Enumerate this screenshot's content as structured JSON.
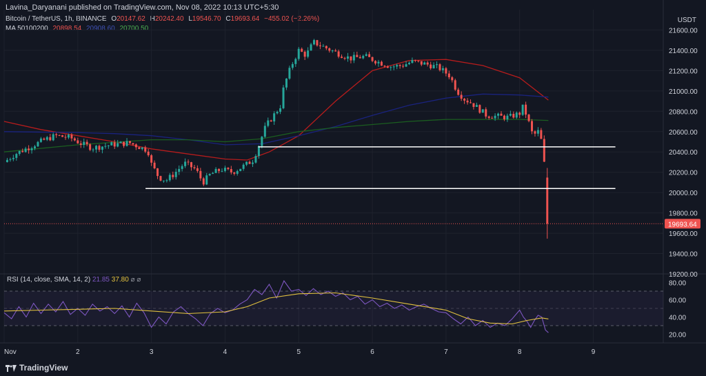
{
  "header": {
    "attribution": "Lavina_Daryanani published on TradingView.com, Nov 08, 2022 10:13 UTC+5:30"
  },
  "legend": {
    "symbol": "Bitcoin / TetherUS, 1h, BINANCE",
    "o_label": "O",
    "o_value": "20147.62",
    "h_label": "H",
    "h_value": "20242.40",
    "l_label": "L",
    "l_value": "19546.70",
    "c_label": "C",
    "c_value": "19693.64",
    "change": "−455.02 (−2.26%)",
    "ma_label": "MA 50100200",
    "ma50_value": "20898.54",
    "ma100_value": "20908.60",
    "ma200_value": "20700.50",
    "colors": {
      "up": "#26a69a",
      "down": "#ef5350",
      "ma50": "#b71c1c",
      "ma100": "#1a237e",
      "ma200": "#1b5e20"
    }
  },
  "rsi_legend": {
    "label": "RSI (14, close, SMA, 14, 2)",
    "rsi_value": "21.85",
    "sma_value": "37.80",
    "flags": "⌀ ⌀",
    "colors": {
      "rsi": "#7e57c2",
      "sma": "#e5c43f"
    }
  },
  "price_axis": {
    "unit": "USDT",
    "current_price_label": "19693.64"
  },
  "footer": {
    "brand": "TradingView"
  },
  "chart_data": [
    {
      "type": "candlestick",
      "title": "Bitcoin / TetherUS, 1h, BINANCE",
      "ylabel": "USDT",
      "ylim": [
        19200,
        21800
      ],
      "yticks": [
        19200,
        19400,
        19600,
        19800,
        20000,
        20200,
        20400,
        20600,
        20800,
        21000,
        21200,
        21400,
        21600
      ],
      "ytick_labels": [
        "19200.00",
        "19400.00",
        "19600.00",
        "19800.00",
        "20000.00",
        "20200.00",
        "20400.00",
        "20600.00",
        "20800.00",
        "21000.00",
        "21200.00",
        "21400.00",
        "21600.00"
      ],
      "xtick_labels": [
        "Nov",
        "2",
        "3",
        "4",
        "5",
        "6",
        "7",
        "8",
        "9"
      ],
      "xtick_days": [
        1,
        2,
        3,
        4,
        5,
        6,
        7,
        8,
        9
      ],
      "x_range_days": [
        1.0,
        9.95
      ],
      "price_path": [
        [
          1.0,
          20300
        ],
        [
          1.15,
          20380
        ],
        [
          1.35,
          20450
        ],
        [
          1.55,
          20520
        ],
        [
          1.7,
          20560
        ],
        [
          1.9,
          20540
        ],
        [
          2.05,
          20480
        ],
        [
          2.2,
          20440
        ],
        [
          2.45,
          20470
        ],
        [
          2.7,
          20490
        ],
        [
          2.9,
          20430
        ],
        [
          2.95,
          20420
        ],
        [
          3.0,
          20280
        ],
        [
          3.1,
          20150
        ],
        [
          3.2,
          20120
        ],
        [
          3.3,
          20180
        ],
        [
          3.45,
          20290
        ],
        [
          3.6,
          20230
        ],
        [
          3.7,
          20100
        ],
        [
          3.8,
          20180
        ],
        [
          3.95,
          20230
        ],
        [
          4.1,
          20200
        ],
        [
          4.25,
          20260
        ],
        [
          4.38,
          20320
        ],
        [
          4.45,
          20450
        ],
        [
          4.55,
          20650
        ],
        [
          4.65,
          20750
        ],
        [
          4.75,
          20850
        ],
        [
          4.8,
          21050
        ],
        [
          4.9,
          21250
        ],
        [
          5.0,
          21400
        ],
        [
          5.1,
          21350
        ],
        [
          5.2,
          21480
        ],
        [
          5.35,
          21430
        ],
        [
          5.5,
          21380
        ],
        [
          5.7,
          21320
        ],
        [
          5.9,
          21340
        ],
        [
          6.1,
          21280
        ],
        [
          6.25,
          21240
        ],
        [
          6.4,
          21250
        ],
        [
          6.55,
          21290
        ],
        [
          6.75,
          21260
        ],
        [
          6.9,
          21230
        ],
        [
          7.05,
          21150
        ],
        [
          7.15,
          21000
        ],
        [
          7.25,
          20920
        ],
        [
          7.35,
          20880
        ],
        [
          7.45,
          20820
        ],
        [
          7.55,
          20760
        ],
        [
          7.7,
          20750
        ],
        [
          7.85,
          20740
        ],
        [
          8.0,
          20780
        ],
        [
          8.05,
          20850
        ],
        [
          8.12,
          20700
        ],
        [
          8.18,
          20560
        ],
        [
          8.25,
          20600
        ],
        [
          8.3,
          20500
        ],
        [
          8.35,
          20180
        ],
        [
          8.39,
          19693.64
        ]
      ],
      "last_candle": {
        "open": 20147.62,
        "high": 20242.4,
        "low": 19546.7,
        "close": 19693.64
      },
      "moving_averages": [
        {
          "name": "MA 50",
          "color": "#b71c1c",
          "points": [
            [
              1.0,
              20700
            ],
            [
              1.5,
              20620
            ],
            [
              2.0,
              20560
            ],
            [
              2.5,
              20500
            ],
            [
              3.0,
              20430
            ],
            [
              3.5,
              20380
            ],
            [
              4.0,
              20330
            ],
            [
              4.3,
              20320
            ],
            [
              4.6,
              20400
            ],
            [
              5.0,
              20560
            ],
            [
              5.5,
              20900
            ],
            [
              6.0,
              21200
            ],
            [
              6.5,
              21300
            ],
            [
              7.0,
              21310
            ],
            [
              7.5,
              21250
            ],
            [
              8.0,
              21130
            ],
            [
              8.39,
              20910
            ]
          ]
        },
        {
          "name": "MA 100",
          "color": "#1a237e",
          "points": [
            [
              1.0,
              20600
            ],
            [
              2.0,
              20590
            ],
            [
              2.5,
              20580
            ],
            [
              3.0,
              20560
            ],
            [
              3.5,
              20520
            ],
            [
              4.0,
              20470
            ],
            [
              4.5,
              20480
            ],
            [
              5.0,
              20560
            ],
            [
              5.5,
              20650
            ],
            [
              6.0,
              20760
            ],
            [
              6.5,
              20860
            ],
            [
              7.0,
              20930
            ],
            [
              7.5,
              20970
            ],
            [
              8.0,
              20960
            ],
            [
              8.39,
              20940
            ]
          ]
        },
        {
          "name": "MA 200",
          "color": "#1b5e20",
          "points": [
            [
              1.0,
              20400
            ],
            [
              2.0,
              20470
            ],
            [
              3.0,
              20520
            ],
            [
              3.5,
              20520
            ],
            [
              4.0,
              20500
            ],
            [
              4.5,
              20530
            ],
            [
              5.0,
              20600
            ],
            [
              5.5,
              20640
            ],
            [
              6.0,
              20670
            ],
            [
              6.5,
              20700
            ],
            [
              7.0,
              20720
            ],
            [
              7.5,
              20720
            ],
            [
              8.0,
              20720
            ],
            [
              8.39,
              20710
            ]
          ]
        }
      ],
      "annotations": [
        {
          "type": "hline",
          "y": 20450,
          "x_from": 4.45,
          "x_to": 9.3,
          "color": "#ffffff"
        },
        {
          "type": "hline",
          "y": 20040,
          "x_from": 2.92,
          "x_to": 9.3,
          "color": "#ffffff"
        },
        {
          "type": "price-line",
          "y": 19693.64,
          "color": "#ef5350"
        }
      ]
    },
    {
      "type": "line",
      "title": "RSI (14, close, SMA, 14, 2)",
      "ylim": [
        10,
        90
      ],
      "yticks": [
        20,
        40,
        60,
        80
      ],
      "ytick_labels": [
        "20.00",
        "40.00",
        "60.00",
        "80.00"
      ],
      "bands": [
        30,
        50,
        70
      ],
      "series": [
        {
          "name": "RSI",
          "color": "#7e57c2",
          "values": [
            [
              1.0,
              45
            ],
            [
              1.1,
              38
            ],
            [
              1.2,
              52
            ],
            [
              1.3,
              40
            ],
            [
              1.4,
              56
            ],
            [
              1.5,
              44
            ],
            [
              1.6,
              55
            ],
            [
              1.7,
              46
            ],
            [
              1.8,
              58
            ],
            [
              1.9,
              43
            ],
            [
              2.0,
              50
            ],
            [
              2.1,
              42
            ],
            [
              2.2,
              55
            ],
            [
              2.3,
              47
            ],
            [
              2.4,
              52
            ],
            [
              2.5,
              44
            ],
            [
              2.6,
              53
            ],
            [
              2.7,
              40
            ],
            [
              2.8,
              56
            ],
            [
              2.9,
              45
            ],
            [
              3.0,
              28
            ],
            [
              3.1,
              40
            ],
            [
              3.2,
              32
            ],
            [
              3.3,
              46
            ],
            [
              3.4,
              52
            ],
            [
              3.5,
              44
            ],
            [
              3.6,
              38
            ],
            [
              3.7,
              30
            ],
            [
              3.8,
              44
            ],
            [
              3.9,
              50
            ],
            [
              4.0,
              45
            ],
            [
              4.1,
              48
            ],
            [
              4.2,
              55
            ],
            [
              4.3,
              60
            ],
            [
              4.4,
              72
            ],
            [
              4.5,
              66
            ],
            [
              4.6,
              78
            ],
            [
              4.7,
              62
            ],
            [
              4.8,
              82
            ],
            [
              4.9,
              70
            ],
            [
              5.0,
              72
            ],
            [
              5.1,
              65
            ],
            [
              5.2,
              73
            ],
            [
              5.3,
              66
            ],
            [
              5.4,
              70
            ],
            [
              5.5,
              64
            ],
            [
              5.6,
              68
            ],
            [
              5.7,
              60
            ],
            [
              5.8,
              64
            ],
            [
              5.9,
              55
            ],
            [
              6.0,
              60
            ],
            [
              6.1,
              52
            ],
            [
              6.2,
              56
            ],
            [
              6.3,
              50
            ],
            [
              6.4,
              54
            ],
            [
              6.5,
              48
            ],
            [
              6.6,
              52
            ],
            [
              6.7,
              55
            ],
            [
              6.8,
              50
            ],
            [
              6.9,
              46
            ],
            [
              7.0,
              45
            ],
            [
              7.1,
              38
            ],
            [
              7.2,
              32
            ],
            [
              7.3,
              40
            ],
            [
              7.4,
              30
            ],
            [
              7.5,
              36
            ],
            [
              7.6,
              28
            ],
            [
              7.7,
              33
            ],
            [
              7.8,
              30
            ],
            [
              7.9,
              38
            ],
            [
              8.0,
              48
            ],
            [
              8.05,
              40
            ],
            [
              8.1,
              35
            ],
            [
              8.15,
              28
            ],
            [
              8.2,
              36
            ],
            [
              8.25,
              42
            ],
            [
              8.3,
              40
            ],
            [
              8.35,
              25
            ],
            [
              8.39,
              21.85
            ]
          ]
        },
        {
          "name": "SMA",
          "color": "#e5c43f",
          "values": [
            [
              1.0,
              47
            ],
            [
              1.5,
              48
            ],
            [
              2.0,
              49
            ],
            [
              2.5,
              50
            ],
            [
              3.0,
              47
            ],
            [
              3.5,
              44
            ],
            [
              4.0,
              46
            ],
            [
              4.3,
              52
            ],
            [
              4.6,
              62
            ],
            [
              5.0,
              67
            ],
            [
              5.5,
              68
            ],
            [
              6.0,
              62
            ],
            [
              6.5,
              55
            ],
            [
              7.0,
              48
            ],
            [
              7.3,
              38
            ],
            [
              7.6,
              33
            ],
            [
              7.9,
              32
            ],
            [
              8.1,
              36
            ],
            [
              8.3,
              39
            ],
            [
              8.39,
              37.8
            ]
          ]
        }
      ]
    }
  ]
}
